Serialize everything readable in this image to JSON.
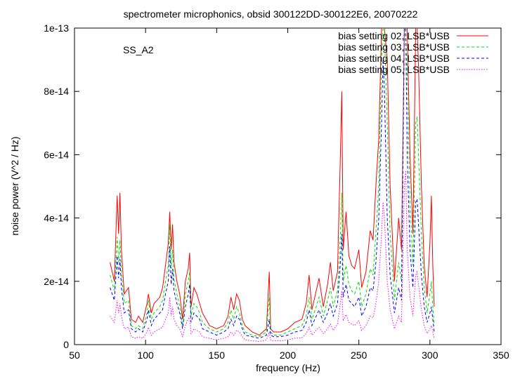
{
  "chart_data": {
    "type": "line",
    "title": "spectrometer microphonics, obsid 300122DD-300122E6, 20070222",
    "annotation": "SS_A2",
    "xlabel": "frequency (Hz)",
    "ylabel": "noise power (V^2 / Hz)",
    "xlim": [
      50,
      350
    ],
    "ylim": [
      0,
      1e-13
    ],
    "x_ticks": [
      50,
      100,
      150,
      200,
      250,
      300,
      350
    ],
    "x_tick_labels": [
      "50",
      "100",
      "150",
      "200",
      "250",
      "300",
      "350"
    ],
    "y_ticks": [
      0,
      2e-14,
      4e-14,
      6e-14,
      8e-14,
      1e-13
    ],
    "y_tick_labels": [
      "0",
      "2e-14",
      "4e-14",
      "6e-14",
      "8e-14",
      "1e-13"
    ],
    "grid": false,
    "legend_position": "top-right",
    "series": [
      {
        "name": "bias setting 02, LSB*USB",
        "color": "#ff0000",
        "dash": "solid",
        "x": [
          75,
          78,
          80,
          81,
          82,
          83,
          85,
          88,
          90,
          93,
          95,
          98,
          101,
          102,
          104,
          106,
          108,
          110,
          112,
          114,
          116,
          117,
          118,
          119,
          120,
          122,
          124,
          126,
          128,
          130,
          131,
          132,
          134,
          136,
          138,
          140,
          145,
          150,
          155,
          158,
          160,
          162,
          164,
          166,
          168,
          170,
          175,
          180,
          185,
          187,
          188,
          190,
          195,
          200,
          205,
          210,
          213,
          215,
          217,
          220,
          222,
          225,
          228,
          230,
          232,
          235,
          237,
          238,
          239,
          241,
          243,
          245,
          247,
          250,
          252,
          255,
          258,
          260,
          262,
          264,
          266,
          267,
          268,
          270,
          272,
          275,
          278,
          280,
          282,
          283,
          284,
          286,
          288,
          290,
          291,
          292,
          294,
          296,
          298,
          300,
          301,
          302,
          303
        ],
        "y": [
          2.6e-14,
          2e-14,
          4.7e-14,
          3.5e-14,
          4.8e-14,
          3e-14,
          1.6e-14,
          1.8e-14,
          8e-15,
          7e-15,
          9e-15,
          7e-15,
          1.3e-14,
          1.6e-14,
          1e-14,
          1.3e-14,
          1.4e-14,
          1.5e-14,
          1.8e-14,
          2.5e-14,
          3.2e-14,
          4.2e-14,
          3e-14,
          3.8e-14,
          2.6e-14,
          2e-14,
          1.6e-14,
          8e-15,
          2e-14,
          2.4e-14,
          2.9e-14,
          1.2e-14,
          1.8e-14,
          1.6e-14,
          1.3e-14,
          1e-14,
          6e-15,
          5e-15,
          6e-15,
          9e-15,
          1.5e-14,
          1.1e-14,
          1.6e-14,
          1.4e-14,
          8e-15,
          6e-15,
          4e-15,
          3e-15,
          5e-15,
          2.3e-14,
          5e-15,
          4e-15,
          4e-15,
          5e-15,
          7e-15,
          8e-15,
          1.3e-14,
          2.2e-14,
          1.1e-14,
          1.7e-14,
          2.1e-14,
          1.2e-14,
          1.9e-14,
          2.6e-14,
          1.7e-14,
          2.3e-14,
          6e-14,
          8e-14,
          3e-14,
          4.2e-14,
          2.8e-14,
          2.5e-14,
          2.4e-14,
          3e-14,
          1.8e-14,
          2.3e-14,
          3.6e-14,
          3.3e-14,
          5e-14,
          6.5e-14,
          1e-13,
          1e-13,
          1e-13,
          9e-14,
          5e-14,
          2e-14,
          4e-14,
          3e-14,
          1e-13,
          1e-13,
          1e-13,
          6e-14,
          3.5e-14,
          1e-13,
          1e-13,
          8.8e-14,
          5e-14,
          2.5e-14,
          1.5e-14,
          3.2e-14,
          4.7e-14,
          2.5e-14,
          1.2e-14
        ]
      },
      {
        "name": "bias setting 03, LSB*USB",
        "color": "#00dd00",
        "dash": "dashed",
        "x": [
          75,
          78,
          80,
          81,
          82,
          83,
          85,
          88,
          90,
          93,
          95,
          98,
          101,
          102,
          104,
          106,
          108,
          110,
          112,
          114,
          116,
          117,
          118,
          119,
          120,
          122,
          124,
          126,
          128,
          130,
          131,
          132,
          134,
          136,
          138,
          140,
          145,
          150,
          155,
          158,
          160,
          162,
          164,
          166,
          168,
          170,
          175,
          180,
          185,
          187,
          188,
          190,
          195,
          200,
          205,
          210,
          213,
          215,
          217,
          220,
          222,
          225,
          228,
          230,
          232,
          235,
          237,
          238,
          239,
          241,
          243,
          245,
          247,
          250,
          252,
          255,
          258,
          260,
          262,
          264,
          266,
          267,
          268,
          270,
          272,
          275,
          278,
          280,
          282,
          283,
          284,
          286,
          288,
          290,
          291,
          292,
          294,
          296,
          298,
          300,
          301,
          302,
          303
        ],
        "y": [
          2.2e-14,
          1.7e-14,
          3.4e-14,
          2.6e-14,
          3.3e-14,
          2.3e-14,
          1.3e-14,
          1.4e-14,
          6e-15,
          5e-15,
          6e-15,
          5e-15,
          1e-14,
          1.4e-14,
          8e-15,
          1e-14,
          1.1e-14,
          1.2e-14,
          1.4e-14,
          2e-14,
          2.5e-14,
          3.8e-14,
          2.4e-14,
          3e-14,
          2.1e-14,
          1.6e-14,
          1.2e-14,
          6e-15,
          1.6e-14,
          2e-14,
          2.3e-14,
          9e-15,
          1.3e-14,
          1.2e-14,
          1e-14,
          7e-15,
          5e-15,
          4e-15,
          5e-15,
          7e-15,
          1.1e-14,
          8e-15,
          1.2e-14,
          1e-14,
          6e-15,
          4e-15,
          3e-15,
          2.5e-15,
          4e-15,
          1.5e-14,
          4e-15,
          3e-15,
          3e-15,
          4e-15,
          5e-15,
          6e-15,
          9e-15,
          1.5e-14,
          8e-15,
          1.2e-14,
          1.5e-14,
          9e-15,
          1.4e-14,
          1.8e-14,
          1.2e-14,
          1.7e-14,
          3.5e-14,
          4.8e-14,
          2e-14,
          2.5e-14,
          1.9e-14,
          1.7e-14,
          1.6e-14,
          2e-14,
          1.2e-14,
          1.6e-14,
          2.4e-14,
          2.2e-14,
          3.5e-14,
          5e-14,
          9e-14,
          1e-13,
          1e-13,
          7e-14,
          3.5e-14,
          1.4e-14,
          2.6e-14,
          2e-14,
          1e-13,
          1e-13,
          8.5e-14,
          4.5e-14,
          2.5e-14,
          7e-14,
          7.2e-14,
          6e-14,
          3.5e-14,
          1.8e-14,
          1e-14,
          1.6e-14,
          2e-14,
          1.2e-14,
          6e-15
        ]
      },
      {
        "name": "bias setting 04, LSB*USB",
        "color": "#0000ff",
        "dash": "dashed",
        "x": [
          75,
          78,
          80,
          81,
          82,
          83,
          85,
          88,
          90,
          93,
          95,
          98,
          101,
          102,
          104,
          106,
          108,
          110,
          112,
          114,
          116,
          117,
          118,
          119,
          120,
          122,
          124,
          126,
          128,
          130,
          131,
          132,
          134,
          136,
          138,
          140,
          145,
          150,
          155,
          158,
          160,
          162,
          164,
          166,
          168,
          170,
          175,
          180,
          185,
          187,
          188,
          190,
          195,
          200,
          205,
          210,
          213,
          215,
          217,
          220,
          222,
          225,
          228,
          230,
          232,
          235,
          237,
          238,
          239,
          241,
          243,
          245,
          247,
          250,
          252,
          255,
          258,
          260,
          262,
          264,
          266,
          267,
          268,
          270,
          272,
          275,
          278,
          280,
          282,
          283,
          284,
          286,
          288,
          290,
          291,
          292,
          294,
          296,
          298,
          300,
          301,
          302,
          303
        ],
        "y": [
          1.8e-14,
          1.4e-14,
          2.8e-14,
          2.1e-14,
          2.7e-14,
          1.8e-14,
          1e-14,
          1.1e-14,
          5e-15,
          4e-15,
          5e-15,
          4e-15,
          8e-15,
          1.1e-14,
          6e-15,
          8e-15,
          9e-15,
          1e-14,
          1.1e-14,
          1.6e-14,
          2e-14,
          3.1e-14,
          1.9e-14,
          2.4e-14,
          1.7e-14,
          1.3e-14,
          1e-14,
          5e-15,
          1.2e-14,
          1.6e-14,
          1.9e-14,
          7e-15,
          1e-14,
          9e-15,
          8e-15,
          5e-15,
          4e-15,
          3e-15,
          4e-15,
          5e-15,
          8e-15,
          6e-15,
          9e-15,
          8e-15,
          5e-15,
          3e-15,
          2.5e-15,
          2e-15,
          3e-15,
          8e-15,
          3e-15,
          2.5e-15,
          2.5e-15,
          3e-15,
          4e-15,
          4.5e-15,
          7e-15,
          1.1e-14,
          6e-15,
          9e-15,
          1.1e-14,
          7e-15,
          1e-14,
          1.3e-14,
          9e-15,
          1.3e-14,
          2.6e-14,
          3.5e-14,
          1.5e-14,
          1.9e-14,
          1.4e-14,
          1.3e-14,
          1.2e-14,
          1.5e-14,
          9e-15,
          1.2e-14,
          1.8e-14,
          1.7e-14,
          2.6e-14,
          4e-14,
          7e-14,
          9e-14,
          8e-14,
          4e-14,
          2.2e-14,
          1e-14,
          1.8e-14,
          1.4e-14,
          1e-13,
          1e-13,
          6e-14,
          3e-14,
          1.8e-14,
          4.5e-14,
          4.6e-14,
          3.8e-14,
          2.2e-14,
          1.2e-14,
          7e-15,
          1e-14,
          1.2e-14,
          8e-15,
          4e-15
        ]
      },
      {
        "name": "bias setting 05, LSB*USB",
        "color": "#ff00ff",
        "dash": "dotted",
        "x": [
          75,
          78,
          80,
          81,
          82,
          83,
          85,
          88,
          90,
          93,
          95,
          98,
          101,
          102,
          104,
          106,
          108,
          110,
          112,
          114,
          116,
          117,
          118,
          119,
          120,
          122,
          124,
          126,
          128,
          130,
          131,
          132,
          134,
          136,
          138,
          140,
          145,
          150,
          155,
          158,
          160,
          162,
          164,
          166,
          168,
          170,
          175,
          180,
          185,
          187,
          188,
          190,
          195,
          200,
          205,
          210,
          213,
          215,
          217,
          220,
          222,
          225,
          228,
          230,
          232,
          235,
          237,
          238,
          239,
          241,
          243,
          245,
          247,
          250,
          252,
          255,
          258,
          260,
          262,
          264,
          266,
          267,
          268,
          270,
          272,
          275,
          278,
          280,
          282,
          283,
          284,
          286,
          288,
          290,
          291,
          292,
          294,
          296,
          298,
          300,
          301,
          302,
          303
        ],
        "y": [
          9e-15,
          7e-15,
          1.4e-14,
          1e-14,
          1.3e-14,
          9e-15,
          5e-15,
          5.5e-15,
          2.5e-15,
          2e-15,
          2.5e-15,
          2e-15,
          4e-15,
          5.5e-15,
          3e-15,
          4e-15,
          4.5e-15,
          5e-15,
          5.5e-15,
          8e-15,
          1e-14,
          1.5e-14,
          9e-15,
          1.2e-14,
          8e-15,
          6e-15,
          5e-15,
          2.5e-15,
          6e-15,
          8e-15,
          9e-15,
          3.5e-15,
          5e-15,
          4.5e-15,
          4e-15,
          2.5e-15,
          2e-15,
          1.5e-15,
          2e-15,
          2.5e-15,
          4e-15,
          3e-15,
          4.5e-15,
          4e-15,
          2.5e-15,
          1.5e-15,
          1.2e-15,
          1e-15,
          1.5e-15,
          4e-15,
          1.5e-15,
          1.2e-15,
          1.2e-15,
          1.5e-15,
          2e-15,
          2.2e-15,
          3.5e-15,
          5.5e-15,
          3e-15,
          4.5e-15,
          5.5e-15,
          3.5e-15,
          5e-15,
          6.5e-15,
          4.5e-15,
          6.5e-15,
          1.3e-14,
          1.7e-14,
          7.5e-15,
          9.5e-15,
          7e-15,
          6.5e-15,
          6e-15,
          7.5e-15,
          4.5e-15,
          6e-15,
          9e-15,
          8.5e-15,
          1.3e-14,
          2e-14,
          3.5e-14,
          4.5e-14,
          4e-14,
          2e-14,
          1.1e-14,
          5e-15,
          9e-15,
          7e-15,
          5e-14,
          5.5e-14,
          3e-14,
          1.5e-14,
          9e-15,
          2.2e-14,
          2.3e-14,
          1.9e-14,
          1.1e-14,
          6e-15,
          3.5e-15,
          5e-15,
          6e-15,
          4e-15,
          2e-15
        ]
      }
    ]
  }
}
